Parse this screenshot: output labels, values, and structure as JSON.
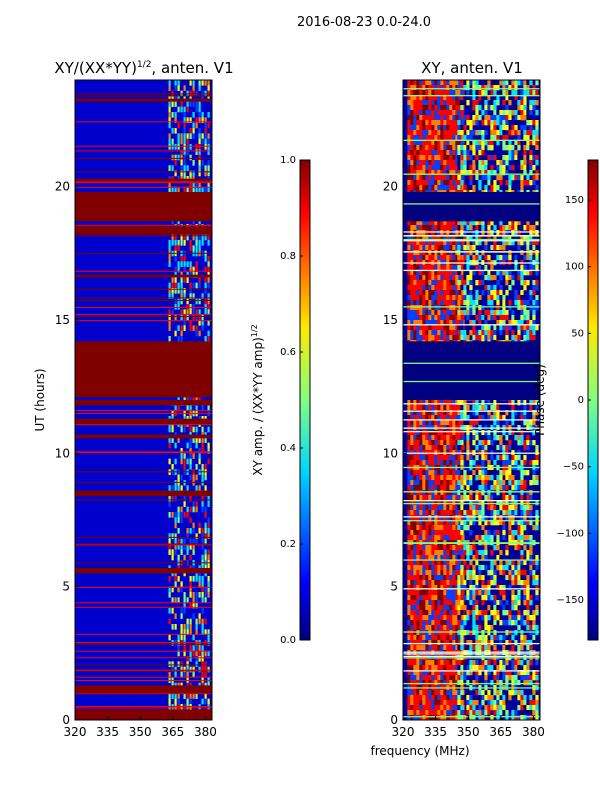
{
  "figure": {
    "suptitle": "2016-08-23 0.0-24.0",
    "xlabel": "frequency (MHz)"
  },
  "colors": {
    "dark_red": "#800000",
    "red": "#ff0000",
    "orange": "#ff8000",
    "yellow": "#ffff00",
    "green": "#80ff80",
    "cyan": "#00e5ff",
    "blue": "#0040ff",
    "dark_blue": "#000080"
  },
  "chart_data": [
    {
      "type": "heatmap",
      "id": "amplitude",
      "title_main": "XY/(XX*YY)",
      "title_sup": "1/2",
      "title_tail": ", anten. V1",
      "ylabel": "UT (hours)",
      "xlim": [
        320,
        383
      ],
      "ylim": [
        0,
        24
      ],
      "xticks": [
        320,
        335,
        350,
        365,
        380
      ],
      "yticks": [
        0,
        5,
        10,
        15,
        20
      ],
      "colorbar": {
        "label_main": "XY amp. / (XX*YY amp)",
        "label_sup": "1/2",
        "range": [
          0.0,
          1.0
        ],
        "ticks": [
          "0.0",
          "0.2",
          "0.4",
          "0.6",
          "0.8",
          "1.0"
        ],
        "tick_values": [
          0.0,
          0.2,
          0.4,
          0.6,
          0.8,
          1.0
        ]
      },
      "saturated_blocks_hours": [
        [
          0.0,
          0.4
        ],
        [
          1.0,
          1.3
        ],
        [
          5.5,
          5.7
        ],
        [
          8.4,
          8.6
        ],
        [
          10.6,
          10.7
        ],
        [
          11.1,
          11.3
        ],
        [
          11.8,
          12.0
        ],
        [
          12.1,
          14.2
        ],
        [
          16.6,
          16.7
        ],
        [
          18.2,
          18.5
        ],
        [
          18.7,
          19.8
        ],
        [
          20.2,
          20.3
        ],
        [
          23.2,
          23.3
        ]
      ],
      "active_band_mhz": [
        363,
        382
      ]
    },
    {
      "type": "heatmap",
      "id": "phase",
      "title_main": "XY, anten. V1",
      "xlim": [
        320,
        383
      ],
      "ylim": [
        0,
        24
      ],
      "xticks": [
        320,
        335,
        350,
        365,
        380
      ],
      "yticks": [
        0,
        5,
        10,
        15,
        20
      ],
      "colorbar": {
        "label_main": "Phase (deg)",
        "range": [
          -180,
          180
        ],
        "ticks": [
          "150",
          "100",
          "50",
          "0",
          "−50",
          "−100",
          "−150"
        ],
        "tick_values": [
          150,
          100,
          50,
          0,
          -50,
          -100,
          -150
        ]
      },
      "low_blocks_hours": [
        [
          12.0,
          14.2
        ],
        [
          18.7,
          19.8
        ]
      ],
      "hot_band_mhz": [
        320,
        345
      ]
    }
  ]
}
